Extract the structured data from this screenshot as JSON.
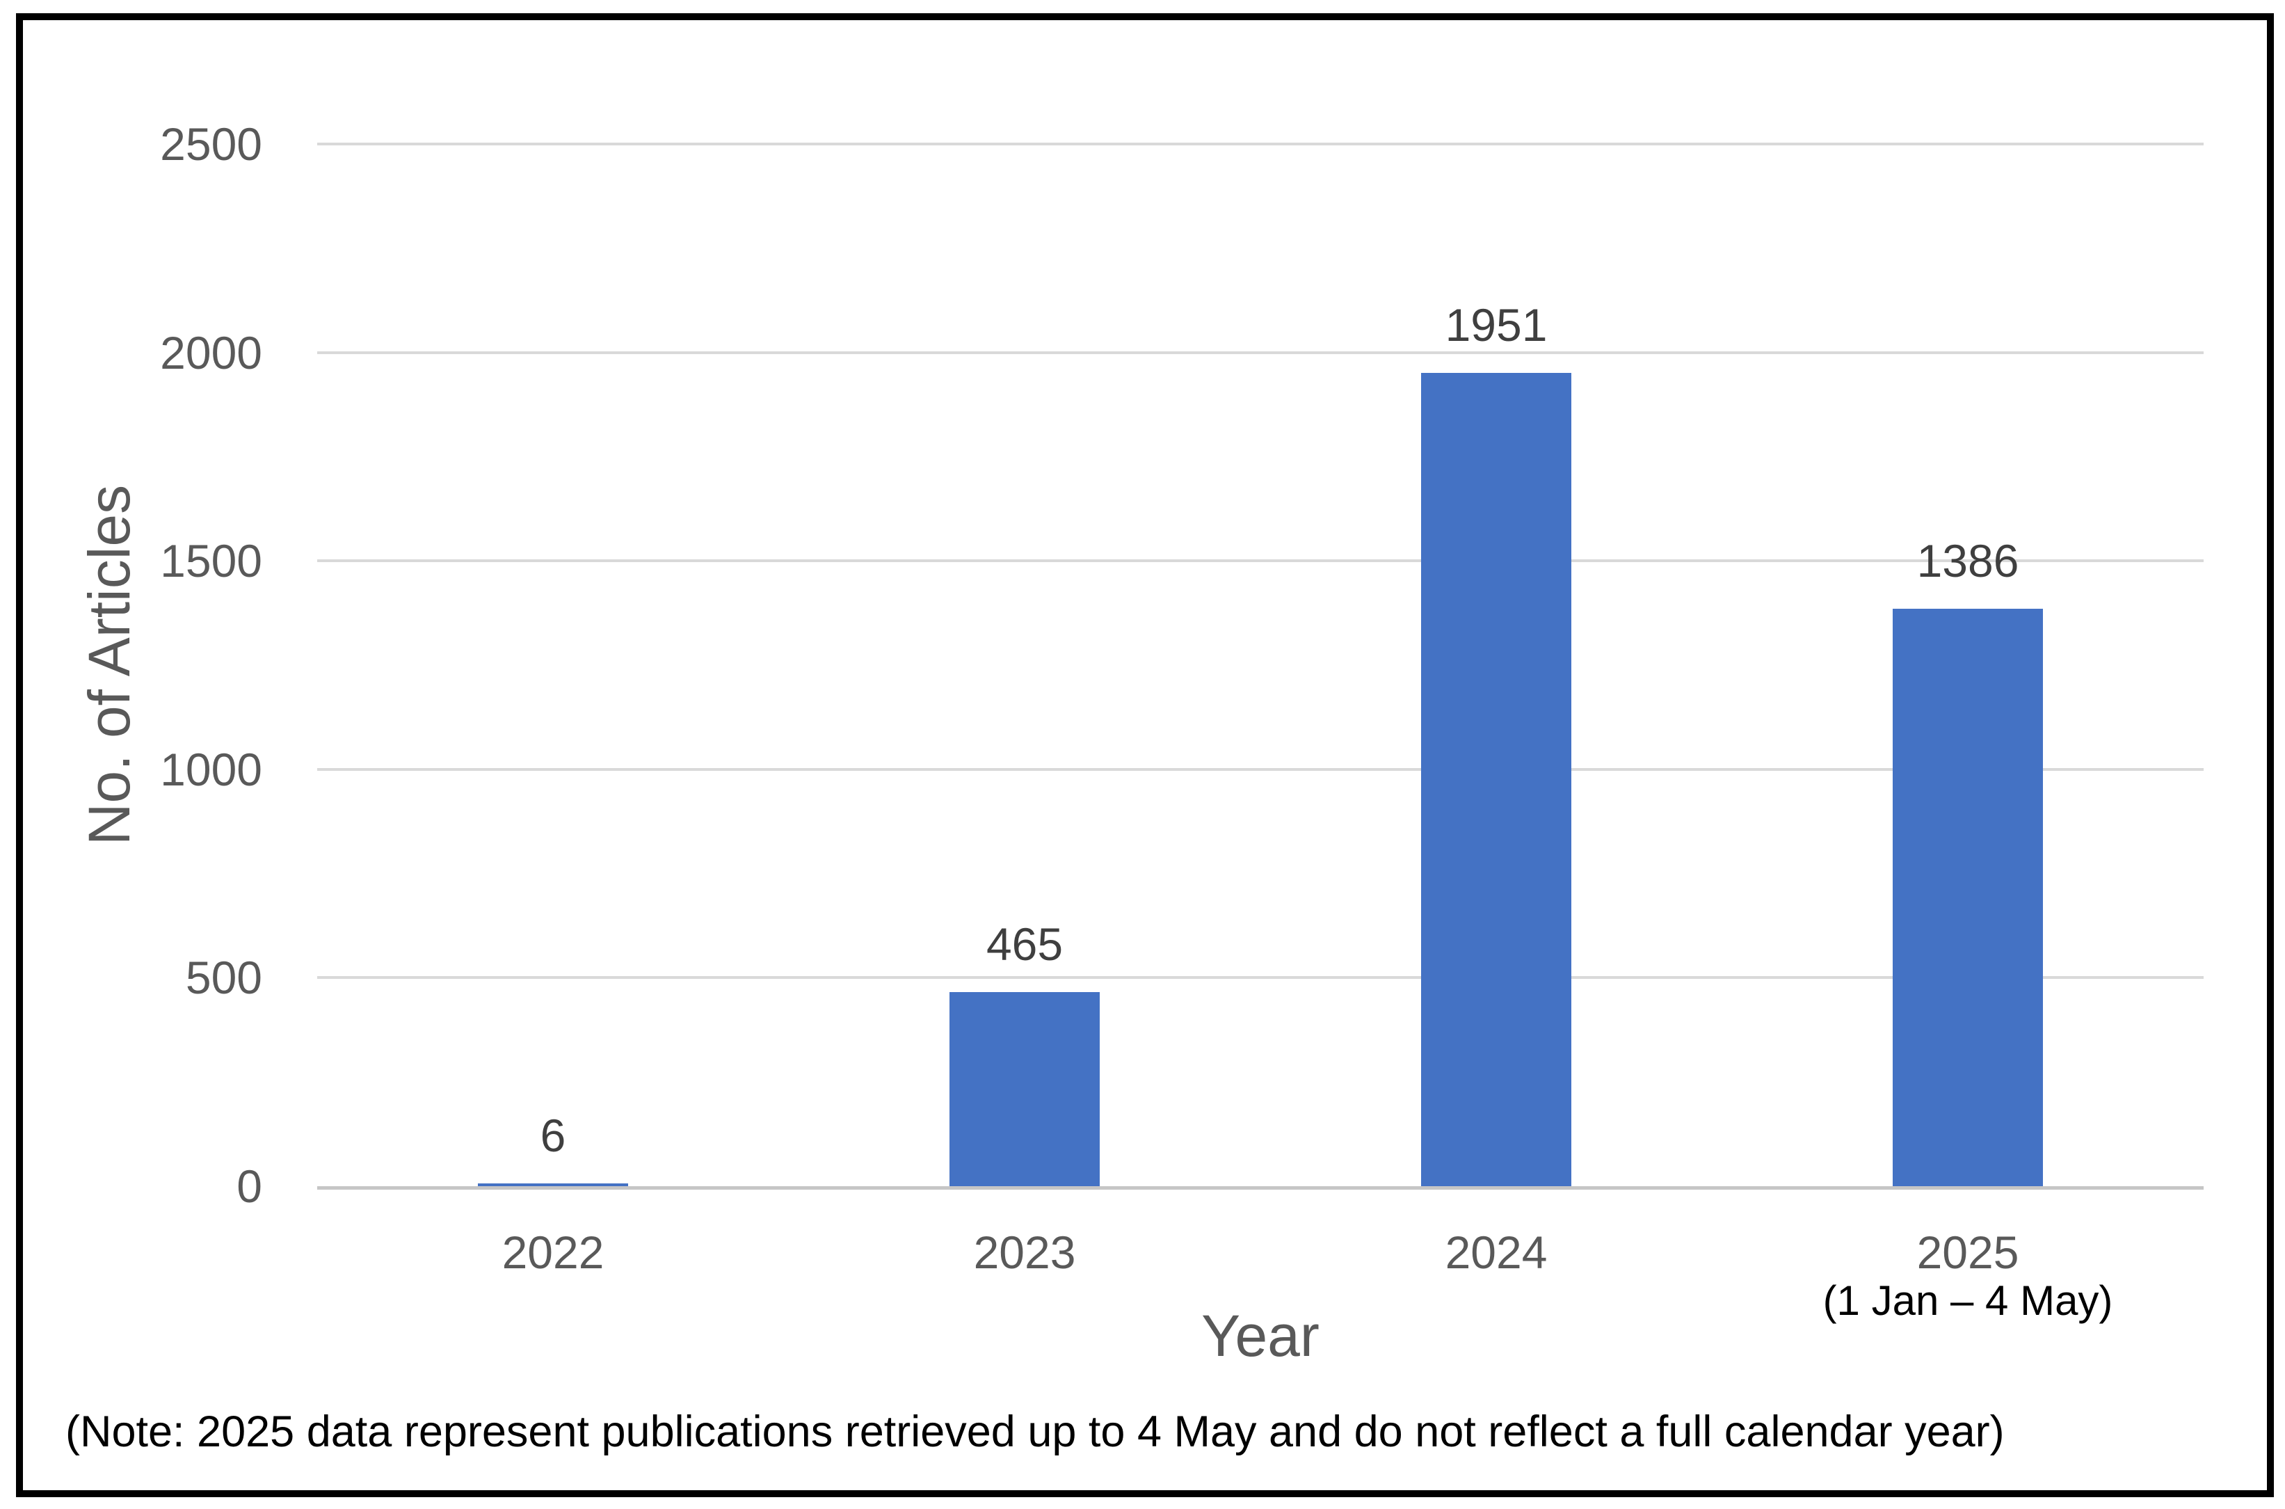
{
  "chart_data": {
    "type": "bar",
    "title": "",
    "categories": [
      "2022",
      "2023",
      "2024",
      "2025"
    ],
    "category_sublabels": [
      "",
      "",
      "",
      "(1 Jan – 4 May)"
    ],
    "values": [
      6,
      465,
      1951,
      1386
    ],
    "data_labels": [
      "6",
      "465",
      "1951",
      "1386"
    ],
    "xlabel": "Year",
    "ylabel": "No. of Articles",
    "ylim": [
      0,
      2500
    ],
    "yticks": [
      0,
      500,
      1000,
      1500,
      2000,
      2500
    ],
    "grid": true,
    "legend": false,
    "note": "(Note: 2025 data represent publications retrieved up to 4 May and do not reflect a full calendar year)",
    "colors": {
      "bar_fill": "#4472c4",
      "gridline": "#d9d9d9",
      "axis_line": "#c6c6c6",
      "axis_text": "#595959",
      "data_label_text": "#3f3f3f",
      "note_text": "#000000",
      "border": "#000000",
      "background": "#ffffff"
    }
  }
}
